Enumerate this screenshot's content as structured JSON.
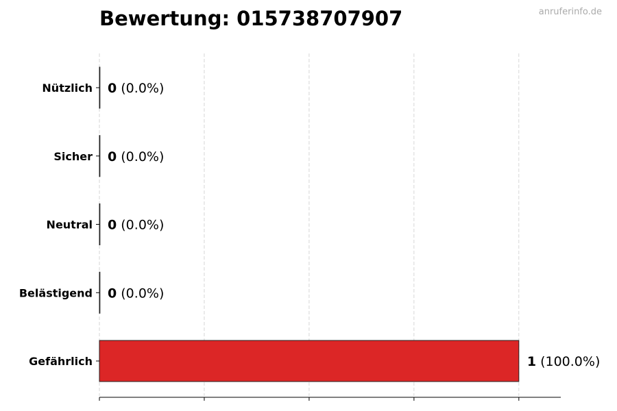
{
  "watermark": "anruferinfo.de",
  "chart_data": {
    "type": "bar",
    "orientation": "horizontal",
    "title": "Bewertung: 015738707907",
    "categories": [
      "Nützlich",
      "Sicher",
      "Neutral",
      "Belästigend",
      "Gefährlich"
    ],
    "values": [
      0,
      0,
      0,
      0,
      1
    ],
    "labels": [
      {
        "count": "0",
        "pct": "(0.0%)"
      },
      {
        "count": "0",
        "pct": "(0.0%)"
      },
      {
        "count": "0",
        "pct": "(0.0%)"
      },
      {
        "count": "0",
        "pct": "(0.0%)"
      },
      {
        "count": "1",
        "pct": "(100.0%)"
      }
    ],
    "bar_color": "#dc2626",
    "xlim": [
      0,
      1.1
    ],
    "xticks": [
      0,
      0.25,
      0.5,
      0.75,
      1
    ],
    "grid": "vertical dashed",
    "xlabel": "",
    "ylabel": ""
  }
}
